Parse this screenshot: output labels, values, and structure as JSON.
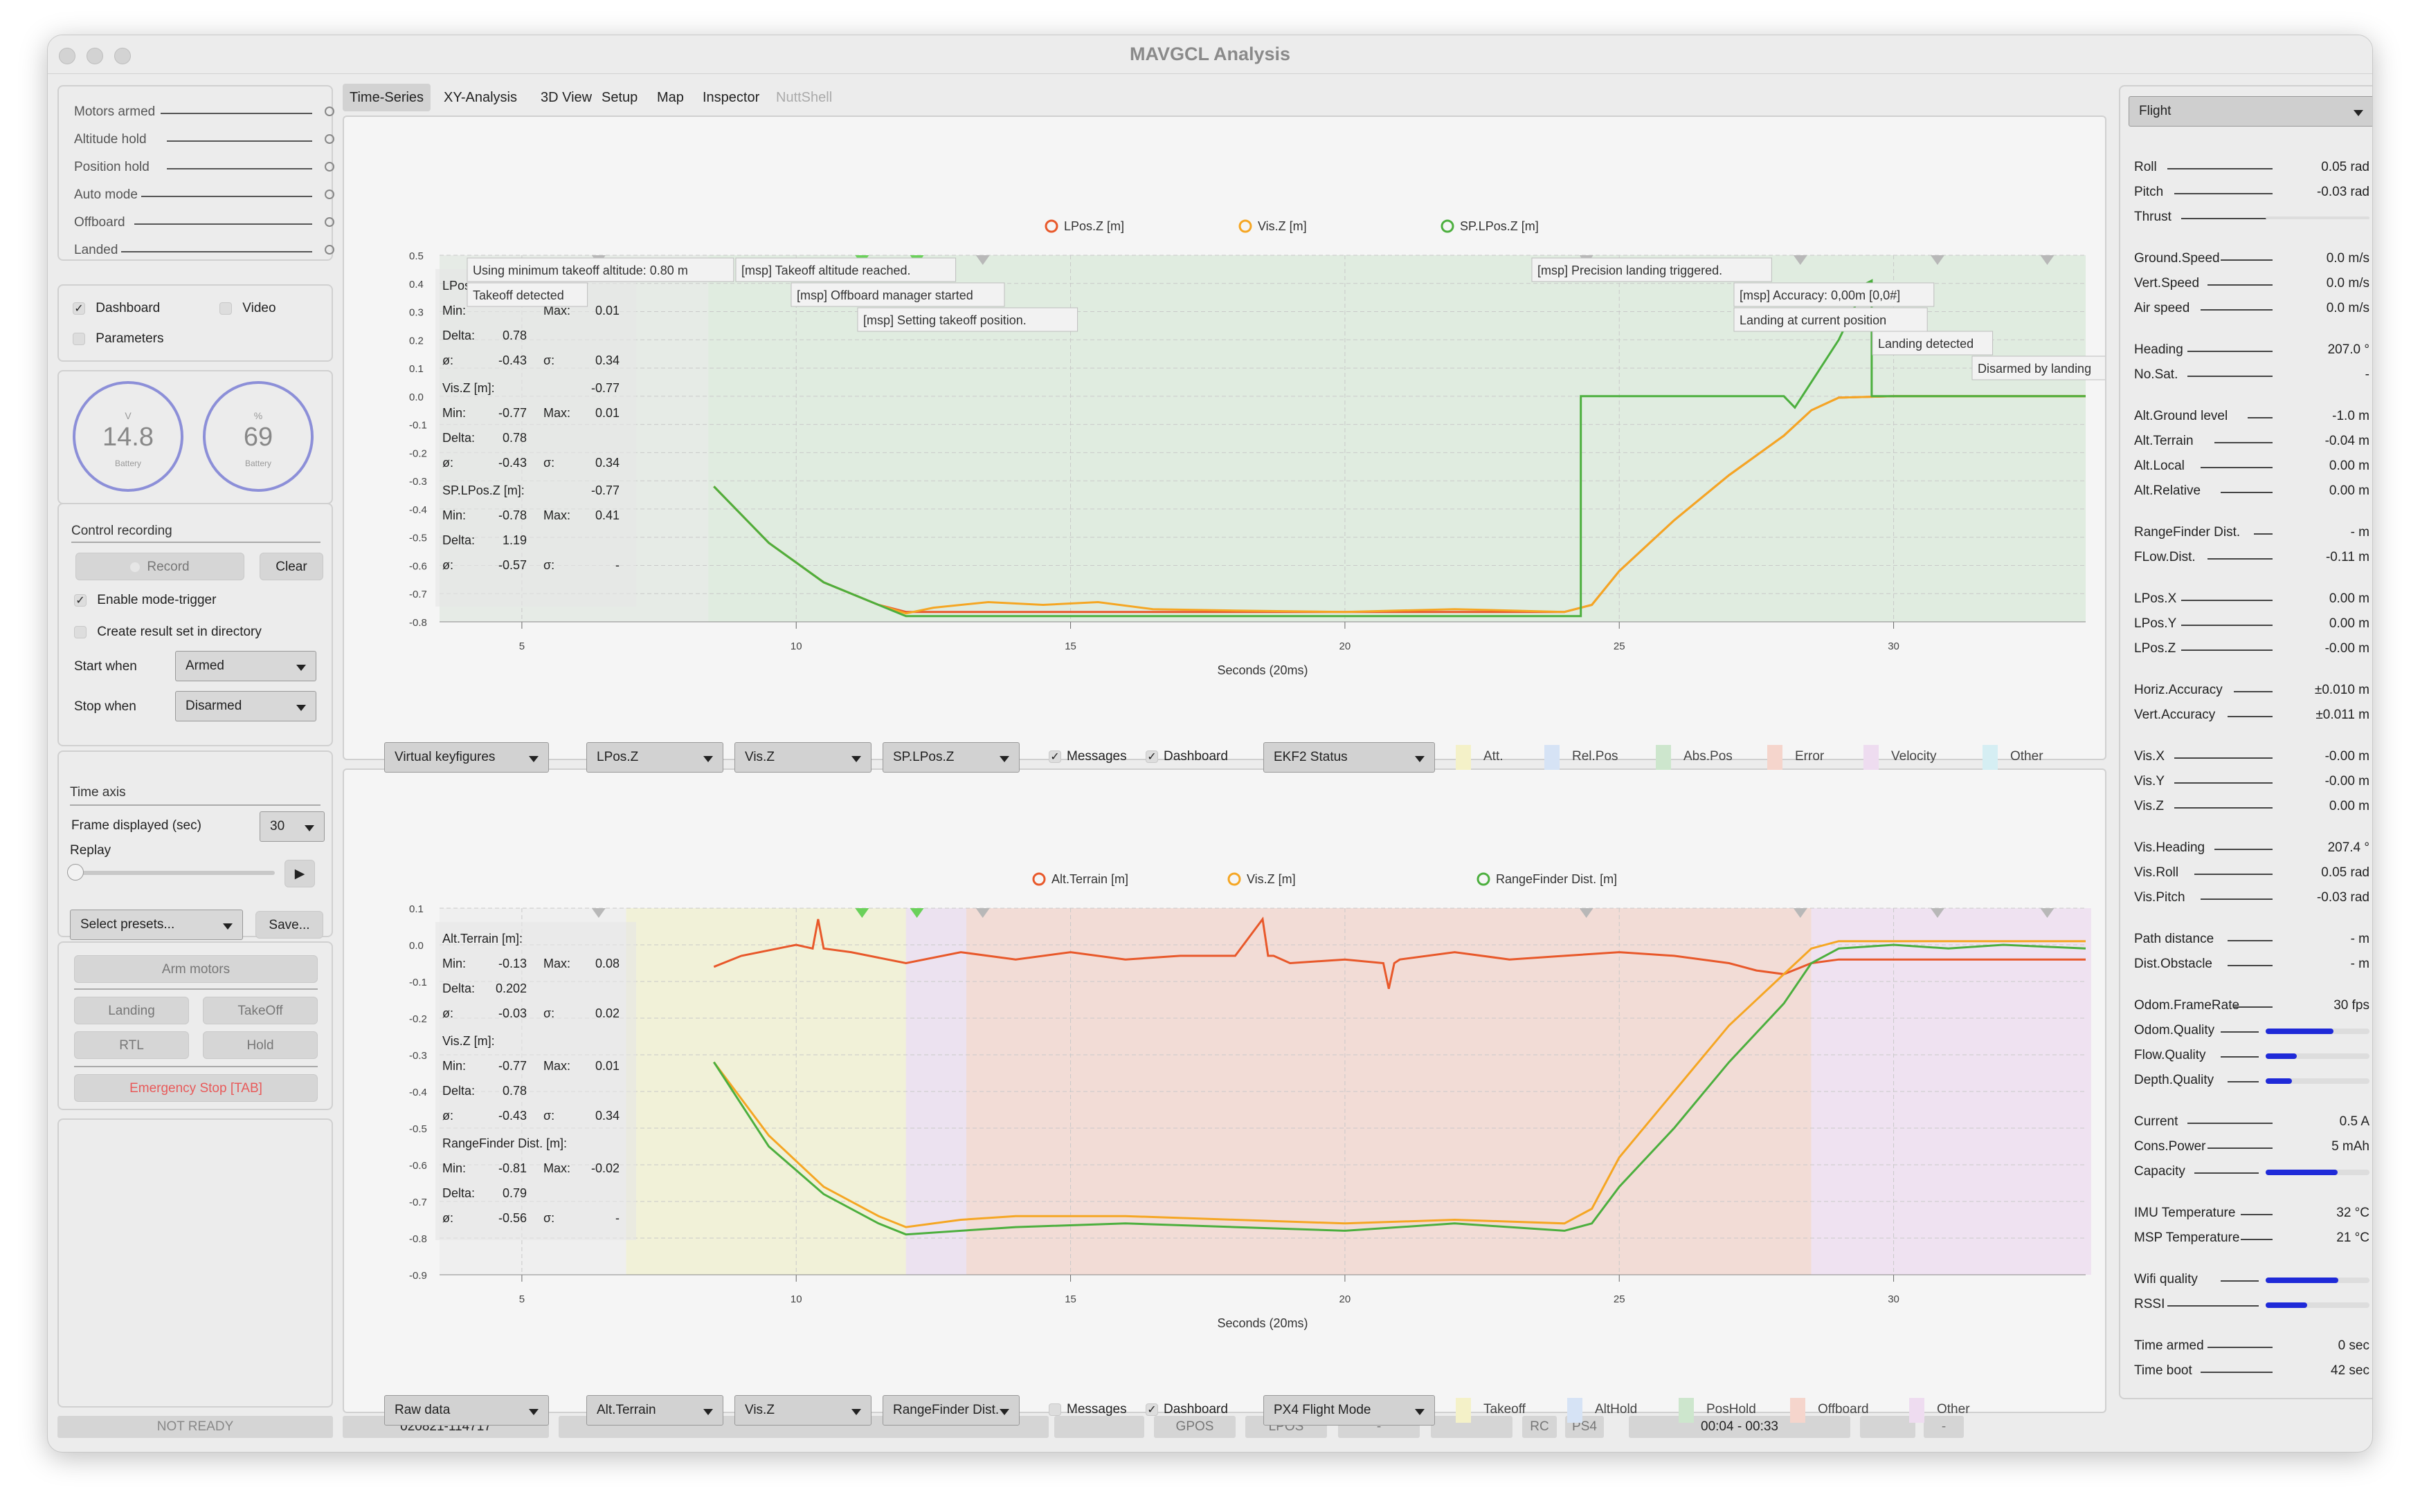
{
  "window": {
    "title": "MAVGCL Analysis"
  },
  "status": {
    "items": [
      "Motors armed",
      "Altitude hold",
      "Position hold",
      "Auto mode",
      "Offboard",
      "Landed"
    ]
  },
  "views": {
    "dashboard": "Dashboard",
    "dashboard_checked": true,
    "video": "Video",
    "video_checked": false,
    "parameters": "Parameters",
    "parameters_checked": false
  },
  "gauges": {
    "voltage": {
      "unit": "V",
      "value": "14.8",
      "label": "Battery"
    },
    "percent": {
      "unit": "%",
      "value": "69",
      "label": "Battery"
    }
  },
  "recording": {
    "title": "Control recording",
    "record_label": "Record",
    "clear_label": "Clear",
    "mode_trigger": "Enable mode-trigger",
    "mode_trigger_checked": true,
    "create_result": "Create result set in directory",
    "start_when_label": "Start when",
    "start_when_value": "Armed",
    "stop_when_label": "Stop when",
    "stop_when_value": "Disarmed"
  },
  "timeaxis": {
    "title": "Time axis",
    "frame_label": "Frame displayed (sec)",
    "frame_value": "30",
    "replay_label": "Replay",
    "presets_label": "Select presets...",
    "save_label": "Save..."
  },
  "commands": {
    "arm": "Arm motors",
    "landing": "Landing",
    "takeoff": "TakeOff",
    "rtl": "RTL",
    "hold": "Hold",
    "emergency": "Emergency Stop [TAB]"
  },
  "tabs": [
    "Time-Series",
    "XY-Analysis",
    "3D View",
    "Setup",
    "Map",
    "Inspector",
    "NuttShell"
  ],
  "colors": {
    "series1": "#e8582a",
    "series2": "#f5a623",
    "series3": "#4caf3e",
    "accent": "#1f2ad8",
    "emergency": "#e85a5a"
  },
  "chart_data": [
    {
      "type": "line",
      "title": "",
      "xlabel": "Seconds (20ms)",
      "ylabel": "",
      "xlim": [
        3.5,
        33.5
      ],
      "ylim": [
        -0.8,
        0.5
      ],
      "xticks": [
        5,
        10,
        15,
        20,
        25,
        30
      ],
      "yticks": [
        0.5,
        0.4,
        0.3,
        0.2,
        0.1,
        -0.0,
        -0.1,
        -0.2,
        -0.3,
        -0.4,
        -0.5,
        -0.6,
        -0.7,
        -0.8
      ],
      "series": [
        {
          "name": "LPos.Z [m]",
          "color": "#e8582a",
          "x": [
            8.5,
            9.5,
            10.5,
            11.5,
            12,
            13,
            14,
            16,
            18,
            20,
            22,
            24,
            24.5,
            25,
            26,
            27,
            28,
            28.5,
            29,
            30,
            31,
            32,
            33.5
          ],
          "y": [
            -0.32,
            -0.52,
            -0.66,
            -0.74,
            -0.765,
            -0.765,
            -0.765,
            -0.765,
            -0.765,
            -0.765,
            -0.765,
            -0.765,
            -0.74,
            -0.62,
            -0.44,
            -0.28,
            -0.14,
            -0.05,
            -0.005,
            0.0,
            0.0,
            0.0,
            0.0
          ]
        },
        {
          "name": "Vis.Z [m]",
          "color": "#f5a623",
          "x": [
            8.5,
            9.5,
            10.5,
            11.5,
            12,
            12.5,
            13.5,
            14.5,
            15.5,
            16.5,
            18,
            20,
            22,
            24,
            24.5,
            25,
            26,
            27,
            28,
            28.5,
            29,
            30,
            31,
            32,
            33.5
          ],
          "y": [
            -0.32,
            -0.52,
            -0.66,
            -0.74,
            -0.77,
            -0.75,
            -0.73,
            -0.74,
            -0.73,
            -0.755,
            -0.76,
            -0.765,
            -0.755,
            -0.765,
            -0.74,
            -0.62,
            -0.44,
            -0.28,
            -0.14,
            -0.05,
            -0.005,
            0.0,
            0.0,
            0.0,
            0.0
          ]
        },
        {
          "name": "SP.LPos.Z [m]",
          "color": "#4caf3e",
          "x": [
            8.5,
            9.5,
            10.5,
            11.5,
            12,
            14,
            16,
            18,
            20,
            22,
            24.3,
            24.3,
            28,
            28.2,
            28.5,
            29,
            29.5,
            29.6,
            29.6,
            30,
            31,
            32,
            33.5
          ],
          "y": [
            -0.32,
            -0.52,
            -0.66,
            -0.74,
            -0.78,
            -0.78,
            -0.78,
            -0.78,
            -0.78,
            -0.78,
            -0.78,
            0.0,
            0.0,
            -0.04,
            0.05,
            0.2,
            0.4,
            0.41,
            0.0,
            0.0,
            0.0,
            0.0,
            0.0
          ]
        }
      ],
      "messages": [
        {
          "text": "Using minimum takeoff altitude: 0.80 m"
        },
        {
          "text": "Takeoff detected"
        },
        {
          "text": "[msp] Takeoff altitude reached."
        },
        {
          "text": "[msp] Offboard manager started"
        },
        {
          "text": "[msp] Setting takeoff position."
        },
        {
          "text": "[msp] Precision landing triggered."
        },
        {
          "text": "[msp] Accuracy: 0,00m [0,0#]"
        },
        {
          "text": "Landing at current position"
        },
        {
          "text": "Landing detected"
        },
        {
          "text": "Disarmed by landing"
        }
      ],
      "stats": [
        {
          "name": "LPos",
          "min": "",
          "max": "0.01",
          "delta": "0.78",
          "avg": "-0.43",
          "sigma": "0.34"
        },
        {
          "name": "Vis.Z [m]:",
          "current": "-0.77",
          "min": "-0.77",
          "max": "0.01",
          "delta": "0.78",
          "avg": "-0.43",
          "sigma": "0.34"
        },
        {
          "name": "SP.LPos.Z [m]:",
          "current": "-0.77",
          "min": "-0.78",
          "max": "0.41",
          "delta": "1.19",
          "avg": "-0.57",
          "sigma": "-"
        }
      ]
    },
    {
      "type": "line",
      "title": "",
      "xlabel": "Seconds (20ms)",
      "ylabel": "",
      "xlim": [
        3.5,
        33.5
      ],
      "ylim": [
        -0.9,
        0.1
      ],
      "xticks": [
        5,
        10,
        15,
        20,
        25,
        30
      ],
      "yticks": [
        0.1,
        -0.0,
        -0.1,
        -0.2,
        -0.3,
        -0.4,
        -0.5,
        -0.6,
        -0.7,
        -0.8,
        -0.9
      ],
      "series": [
        {
          "name": "Alt.Terrain [m]",
          "color": "#e8582a",
          "x": [
            8.5,
            9,
            10,
            10.3,
            10.4,
            10.5,
            11,
            12,
            13,
            14,
            15,
            16,
            17,
            18,
            18.5,
            18.6,
            18.7,
            19,
            20,
            20.7,
            20.8,
            20.9,
            21,
            22,
            23,
            24,
            25,
            26,
            27,
            27.5,
            28,
            28.5,
            29,
            30,
            31,
            32,
            33.5
          ],
          "y": [
            -0.06,
            -0.03,
            -0.0,
            -0.01,
            0.07,
            -0.01,
            -0.02,
            -0.05,
            -0.02,
            -0.04,
            -0.02,
            -0.04,
            -0.03,
            -0.03,
            0.07,
            -0.03,
            -0.03,
            -0.05,
            -0.04,
            -0.05,
            -0.12,
            -0.05,
            -0.04,
            -0.02,
            -0.04,
            -0.03,
            -0.02,
            -0.03,
            -0.05,
            -0.07,
            -0.08,
            -0.05,
            -0.04,
            -0.04,
            -0.04,
            -0.04,
            -0.04
          ]
        },
        {
          "name": "Vis.Z [m]",
          "color": "#f5a623",
          "x": [
            8.5,
            9.5,
            10.5,
            11.5,
            12,
            13,
            14,
            16,
            18,
            20,
            22,
            24,
            24.5,
            25,
            26,
            27,
            28,
            28.5,
            29,
            30,
            31,
            32,
            33.5
          ],
          "y": [
            -0.32,
            -0.52,
            -0.66,
            -0.74,
            -0.77,
            -0.75,
            -0.74,
            -0.74,
            -0.75,
            -0.76,
            -0.75,
            -0.76,
            -0.72,
            -0.58,
            -0.4,
            -0.22,
            -0.08,
            -0.01,
            0.01,
            0.01,
            0.01,
            0.01,
            0.01
          ]
        },
        {
          "name": "RangeFinder Dist. [m]",
          "color": "#4caf3e",
          "x": [
            8.5,
            9.5,
            10.5,
            11.5,
            12,
            13,
            14,
            16,
            18,
            20,
            22,
            24,
            24.5,
            25,
            26,
            27,
            28,
            28.5,
            29,
            30,
            31,
            32,
            33.5
          ],
          "y": [
            -0.32,
            -0.55,
            -0.68,
            -0.76,
            -0.79,
            -0.78,
            -0.77,
            -0.76,
            -0.77,
            -0.78,
            -0.76,
            -0.78,
            -0.76,
            -0.66,
            -0.5,
            -0.32,
            -0.16,
            -0.05,
            -0.01,
            0.0,
            -0.01,
            0.0,
            -0.01
          ]
        }
      ],
      "stats": [
        {
          "name": "Alt.Terrain [m]:",
          "min": "-0.13",
          "max": "0.08",
          "delta": "0.202",
          "avg": "-0.03",
          "sigma": "0.02"
        },
        {
          "name": "Vis.Z [m]:",
          "min": "-0.77",
          "max": "0.01",
          "delta": "0.78",
          "avg": "-0.43",
          "sigma": "0.34"
        },
        {
          "name": "RangeFinder Dist. [m]:",
          "min": "-0.81",
          "max": "-0.02",
          "delta": "0.79",
          "avg": "-0.56",
          "sigma": "-"
        }
      ]
    }
  ],
  "chart1_controls": {
    "preset": "Virtual keyfigures",
    "s1": "LPos.Z",
    "s2": "Vis.Z",
    "s3": "SP.LPos.Z",
    "messages": "Messages",
    "dashboard": "Dashboard",
    "status": "EKF2 Status",
    "legend": [
      "Att.",
      "Rel.Pos",
      "Abs.Pos",
      "Error",
      "Velocity",
      "Other"
    ]
  },
  "chart2_controls": {
    "preset": "Raw data",
    "s1": "Alt.Terrain",
    "s2": "Vis.Z",
    "s3": "RangeFinder Dist.",
    "messages": "Messages",
    "dashboard": "Dashboard",
    "status": "PX4 Flight Mode",
    "legend": [
      "Takeoff",
      "AltHold",
      "PosHold",
      "Offboard",
      "Other"
    ]
  },
  "stat_labels": {
    "min": "Min:",
    "max": "Max:",
    "delta": "Delta:",
    "avg": "ø:",
    "sigma": "σ:"
  },
  "right_panel": {
    "mode": "Flight",
    "groups": [
      [
        {
          "label": "Roll",
          "value": "0.05 rad"
        },
        {
          "label": "Pitch",
          "value": "-0.03 rad"
        },
        {
          "label": "Thrust",
          "value": ""
        }
      ],
      [
        {
          "label": "Ground.Speed",
          "value": "0.0 m/s"
        },
        {
          "label": "Vert.Speed",
          "value": "0.0 m/s"
        },
        {
          "label": "Air speed",
          "value": "0.0 m/s"
        }
      ],
      [
        {
          "label": "Heading",
          "value": "207.0 °"
        },
        {
          "label": "No.Sat.",
          "value": "-"
        }
      ],
      [
        {
          "label": "Alt.Ground level",
          "value": "-1.0 m"
        },
        {
          "label": "Alt.Terrain",
          "value": "-0.04 m"
        },
        {
          "label": "Alt.Local",
          "value": "0.00 m"
        },
        {
          "label": "Alt.Relative",
          "value": "0.00 m"
        }
      ],
      [
        {
          "label": "RangeFinder Dist.",
          "value": "- m"
        },
        {
          "label": "FLow.Dist.",
          "value": "-0.11 m"
        }
      ],
      [
        {
          "label": "LPos.X",
          "value": "0.00 m"
        },
        {
          "label": "LPos.Y",
          "value": "0.00 m"
        },
        {
          "label": "LPos.Z",
          "value": "-0.00 m"
        }
      ],
      [
        {
          "label": "Horiz.Accuracy",
          "value": "±0.010 m"
        },
        {
          "label": "Vert.Accuracy",
          "value": "±0.011 m"
        }
      ],
      [
        {
          "label": "Vis.X",
          "value": "-0.00 m"
        },
        {
          "label": "Vis.Y",
          "value": "-0.00 m"
        },
        {
          "label": "Vis.Z",
          "value": "0.00 m"
        }
      ],
      [
        {
          "label": "Vis.Heading",
          "value": "207.4 °"
        },
        {
          "label": "Vis.Roll",
          "value": "0.05 rad"
        },
        {
          "label": "Vis.Pitch",
          "value": "-0.03 rad"
        }
      ],
      [
        {
          "label": "Path distance",
          "value": "- m"
        },
        {
          "label": "Dist.Obstacle",
          "value": "- m"
        }
      ],
      [
        {
          "label": "Odom.FrameRate",
          "value": "30 fps"
        },
        {
          "label": "Odom.Quality",
          "bar": 0.65
        },
        {
          "label": "Flow.Quality",
          "bar": 0.3
        },
        {
          "label": "Depth.Quality",
          "bar": 0.25
        }
      ],
      [
        {
          "label": "Current",
          "value": "0.5 A"
        },
        {
          "label": "Cons.Power",
          "value": "5 mAh"
        },
        {
          "label": "Capacity",
          "bar": 0.69
        }
      ],
      [
        {
          "label": "IMU Temperature",
          "value": "32 °C"
        },
        {
          "label": "MSP Temperature",
          "value": "21 °C"
        }
      ],
      [
        {
          "label": "Wifi quality",
          "bar": 0.7
        },
        {
          "label": "RSSI",
          "bar": 0.4
        }
      ],
      [
        {
          "label": "Time armed",
          "value": "0 sec"
        },
        {
          "label": "Time boot",
          "value": "42 sec"
        }
      ]
    ]
  },
  "statusbar": {
    "state": "NOT READY",
    "session": "020821-114717",
    "gpos": "GPOS",
    "lpos": "LPOS",
    "dash1": "-",
    "rc": "RC",
    "ps4": "PS4",
    "time": "00:04 - 00:33",
    "dash2": "-"
  }
}
